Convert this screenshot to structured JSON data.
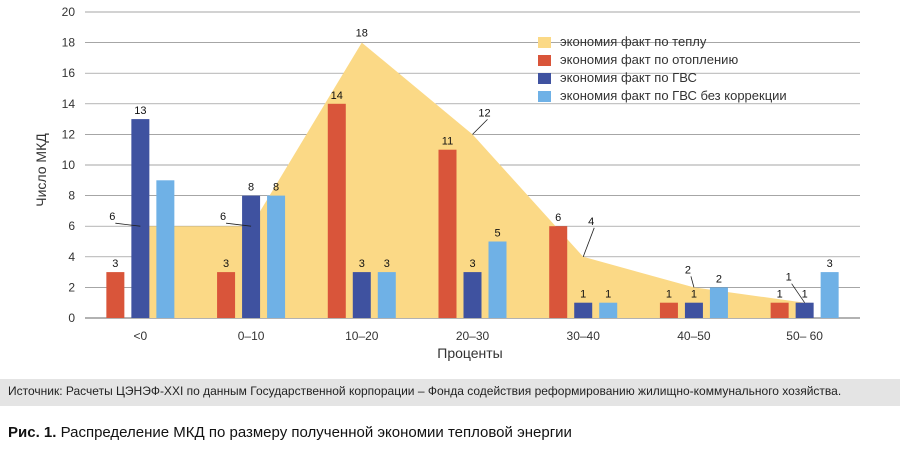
{
  "chart_data": {
    "type": "bar",
    "categories": [
      "<0",
      "0–10",
      "10–20",
      "20–30",
      "30–40",
      "40–50",
      "50– 60"
    ],
    "series": [
      {
        "name": "экономия факт по теплу",
        "kind": "area",
        "color": "#fbd986",
        "values": [
          6,
          6,
          18,
          12,
          4,
          2,
          1
        ]
      },
      {
        "name": "экономия факт по отоплению",
        "kind": "bar",
        "color": "#d9553a",
        "values": [
          3,
          3,
          14,
          11,
          6,
          1,
          1
        ]
      },
      {
        "name": "экономия факт по ГВС",
        "kind": "bar",
        "color": "#3f52a0",
        "values": [
          13,
          8,
          3,
          3,
          1,
          1,
          1
        ]
      },
      {
        "name": "экономия факт по ГВС без коррекции",
        "kind": "bar",
        "color": "#6fb1e6",
        "values": [
          9,
          8,
          3,
          5,
          1,
          2,
          3
        ]
      }
    ],
    "data_labels": {
      "area": [
        "6",
        "6",
        "18",
        "12",
        "4",
        "2",
        "1"
      ],
      "heating": [
        "3",
        "3",
        "14",
        "11",
        "6",
        "1",
        "1"
      ],
      "gvs": [
        "13",
        "8",
        "3",
        "3",
        "1",
        "1",
        "1"
      ],
      "gvs_uncorrected": [
        "",
        "8",
        "3",
        "5",
        "1",
        "2",
        "3"
      ]
    },
    "xlabel": "Проценты",
    "ylabel": "Число МКД",
    "ylim": [
      0,
      20
    ],
    "yticks": [
      "0",
      "2",
      "4",
      "6",
      "8",
      "10",
      "12",
      "14",
      "16",
      "18",
      "20"
    ],
    "grid": true,
    "legend_position": "top-right"
  },
  "source_text": "Источник: Расчеты ЦЭНЭФ-XXI по данным Государственной корпорации – Фонда содействия реформированию жилищно-коммунального хозяйства.",
  "caption": {
    "prefix": "Рис. 1.",
    "text": "Распределение МКД по размеру полученной экономии тепловой энергии"
  }
}
